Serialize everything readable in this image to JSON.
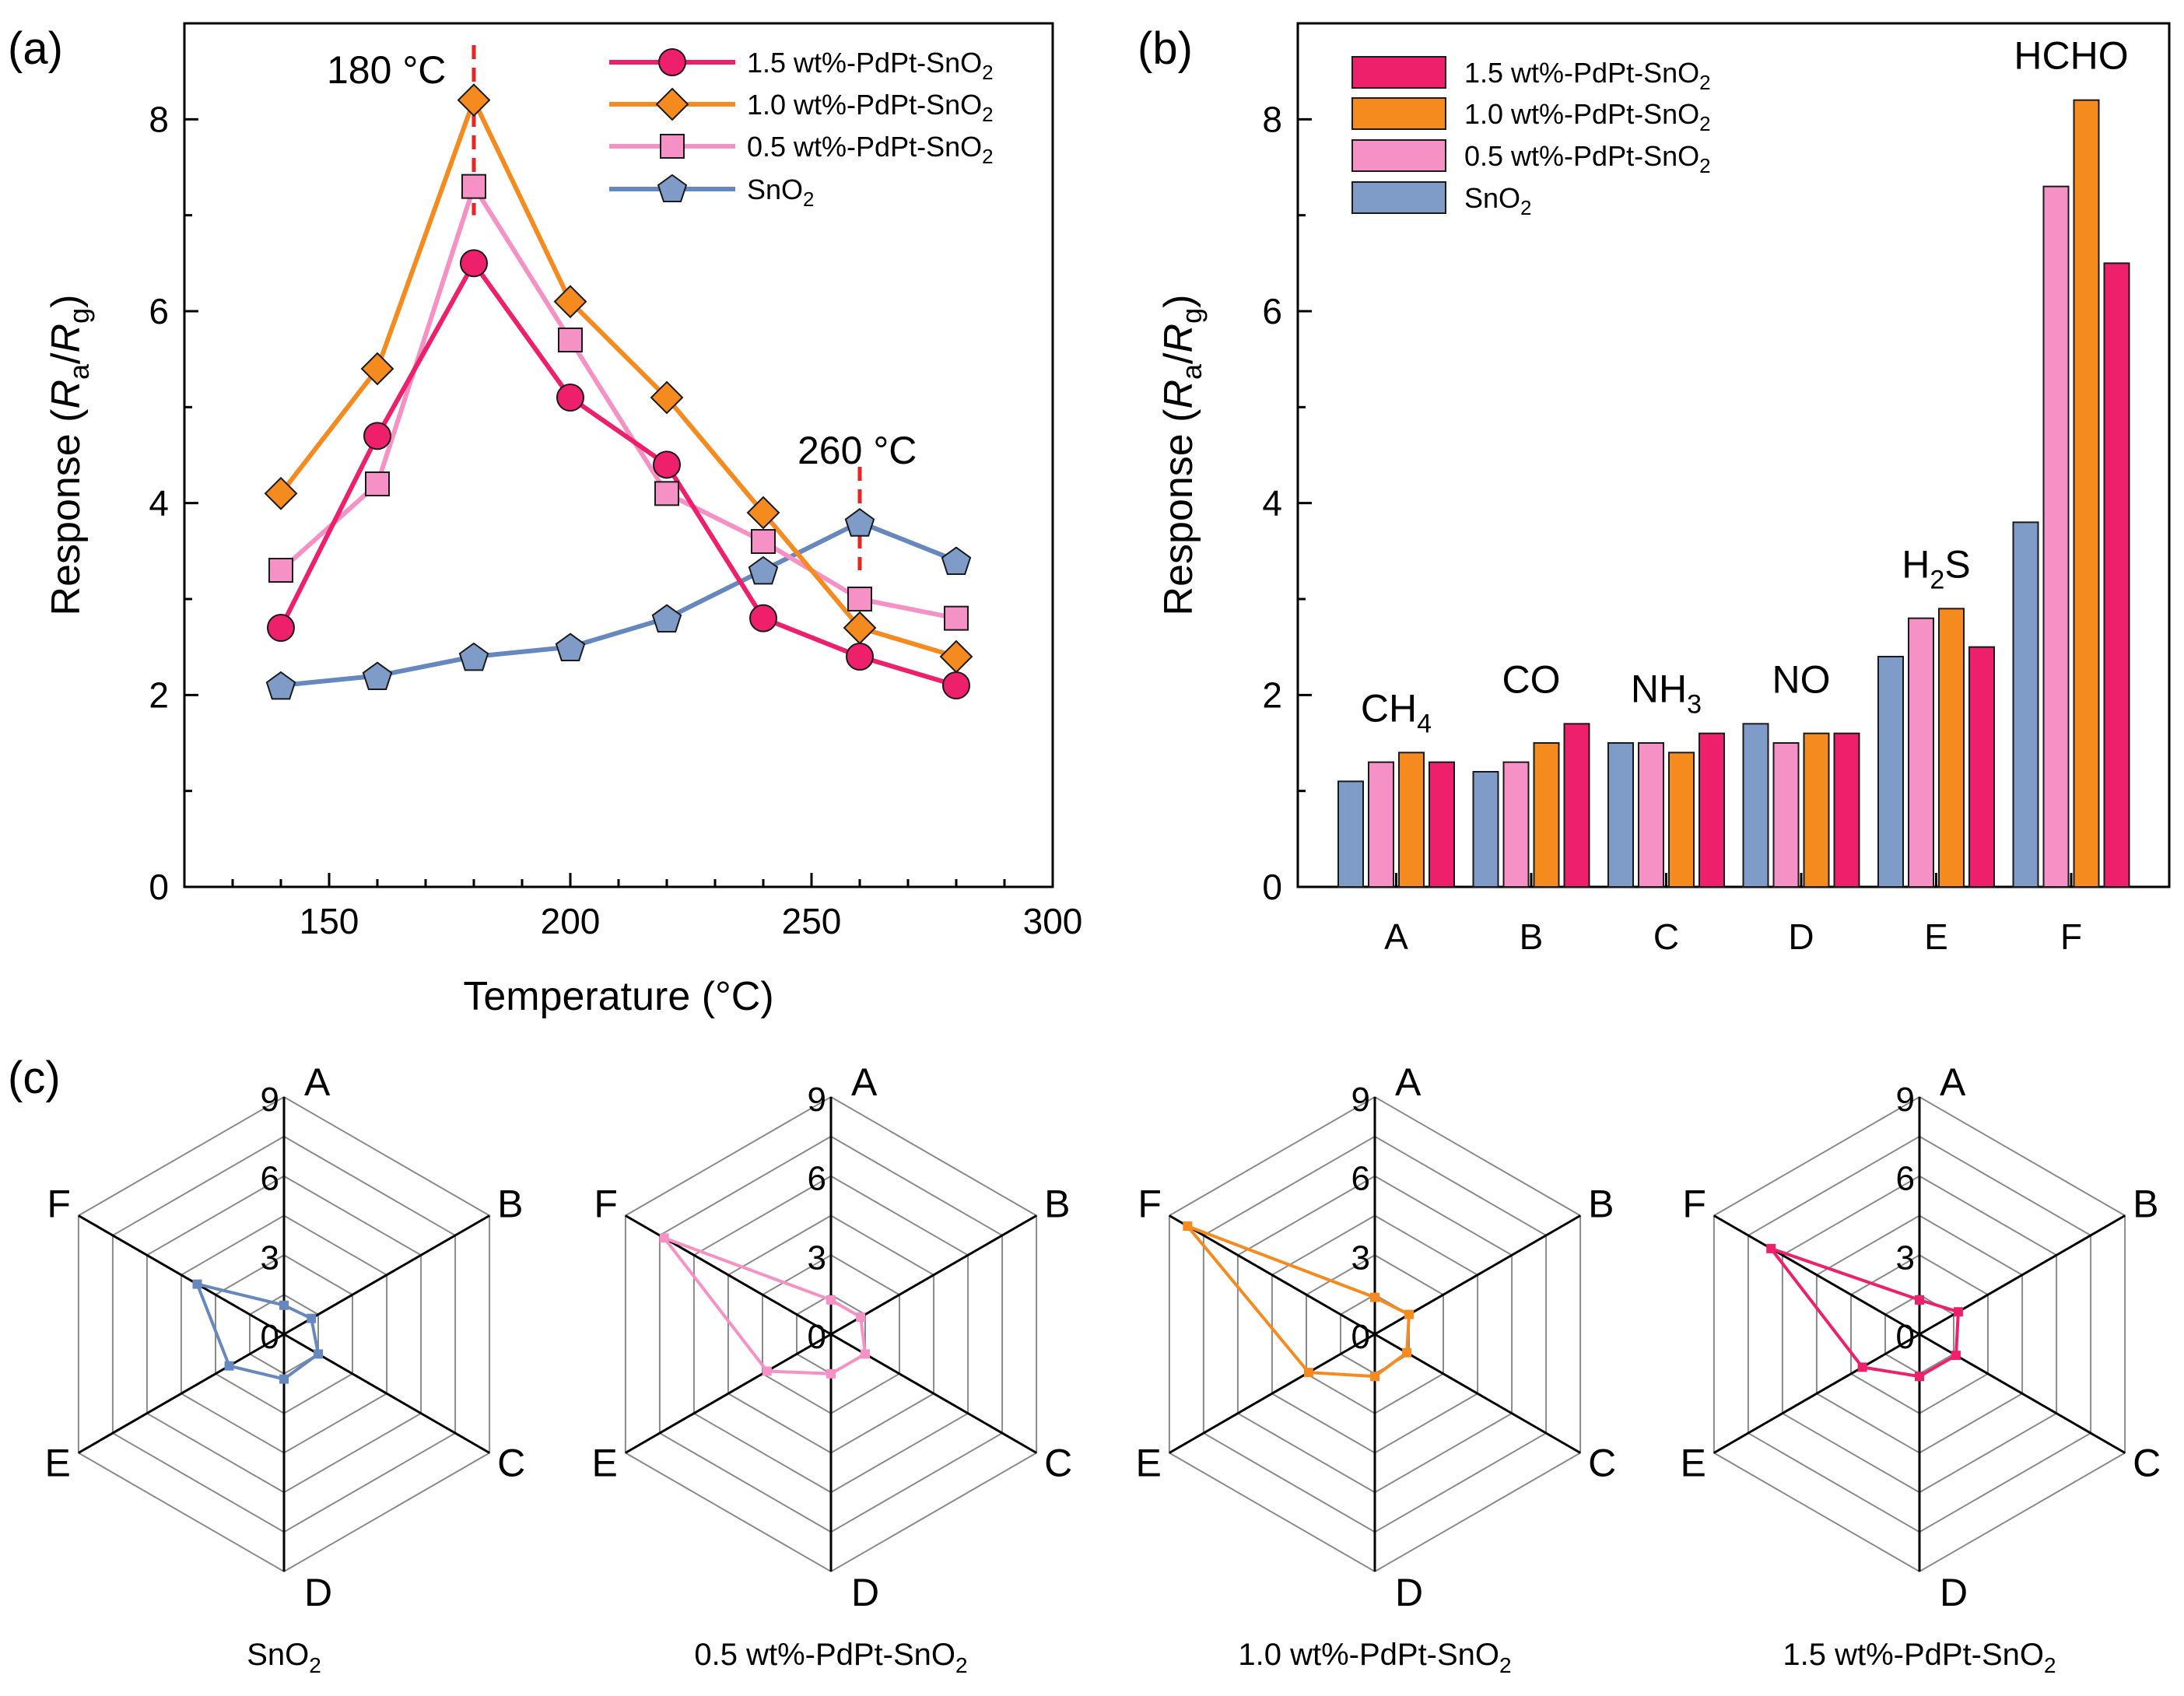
{
  "colors": {
    "s15": "#EE1F6B",
    "s10": "#F58A1F",
    "s05": "#F691C5",
    "sno2": "#7F9CC9",
    "sno2_line": "#6788BE",
    "marker_edge": "#1a1a1a",
    "vline": "#E8251F"
  },
  "panel_a": {
    "label": "(a)",
    "xlabel": "Temperature (°C)",
    "ylabel_prefix": "Response (",
    "ylabel_ra": "R",
    "ylabel_ra_sub": "a",
    "ylabel_slash": "/",
    "ylabel_rg": "R",
    "ylabel_rg_sub": "g",
    "ylabel_suffix": ")",
    "annotations": [
      "180 °C",
      "260 °C"
    ]
  },
  "panel_b": {
    "label": "(b)",
    "ylabel_prefix": "Response (",
    "ylabel_ra": "R",
    "ylabel_ra_sub": "a",
    "ylabel_slash": "/",
    "ylabel_rg": "R",
    "ylabel_rg_sub": "g",
    "ylabel_suffix": ")",
    "gas_labels": [
      {
        "main": "CH",
        "sub": "4",
        "post": ""
      },
      {
        "main": "CO",
        "sub": "",
        "post": ""
      },
      {
        "main": "NH",
        "sub": "3",
        "post": ""
      },
      {
        "main": "NO",
        "sub": "",
        "post": ""
      },
      {
        "main": "H",
        "sub": "2",
        "post": "S"
      },
      {
        "main": "HCHO",
        "sub": "",
        "post": ""
      }
    ]
  },
  "panel_c": {
    "label": "(c)"
  },
  "legend": [
    {
      "pre": "1.5 wt%-PdPt-SnO",
      "sub": "2"
    },
    {
      "pre": "1.0 wt%-PdPt-SnO",
      "sub": "2"
    },
    {
      "pre": "0.5 wt%-PdPt-SnO",
      "sub": "2"
    },
    {
      "pre": "SnO",
      "sub": "2"
    }
  ],
  "chart_data": [
    {
      "type": "line",
      "title": "",
      "xlabel": "Temperature (°C)",
      "ylabel": "Response (Ra/Rg)",
      "xlim": [
        120,
        300
      ],
      "ylim": [
        0,
        9
      ],
      "xticks": [
        150,
        200,
        250,
        300
      ],
      "yticks": [
        0,
        2,
        4,
        6,
        8
      ],
      "x": [
        140,
        160,
        180,
        200,
        220,
        240,
        260,
        280
      ],
      "series": [
        {
          "name": "1.5 wt%-PdPt-SnO2",
          "marker": "circle",
          "values": [
            2.7,
            4.7,
            6.5,
            5.1,
            4.4,
            2.8,
            2.4,
            2.1
          ]
        },
        {
          "name": "1.0 wt%-PdPt-SnO2",
          "marker": "diamond",
          "values": [
            4.1,
            5.4,
            8.2,
            6.1,
            5.1,
            3.9,
            2.7,
            2.4
          ]
        },
        {
          "name": "0.5 wt%-PdPt-SnO2",
          "marker": "square",
          "values": [
            3.3,
            4.2,
            7.3,
            5.7,
            4.1,
            3.6,
            3.0,
            2.8
          ]
        },
        {
          "name": "SnO2",
          "marker": "pentagon",
          "values": [
            2.1,
            2.2,
            2.4,
            2.5,
            2.8,
            3.3,
            3.8,
            3.4
          ]
        }
      ],
      "vlines": [
        180,
        260
      ],
      "legend_position": "top-right"
    },
    {
      "type": "bar",
      "title": "",
      "xlabel": "",
      "ylabel": "Response (Ra/Rg)",
      "ylim": [
        0,
        9
      ],
      "yticks": [
        0,
        2,
        4,
        6,
        8
      ],
      "categories": [
        "A",
        "B",
        "C",
        "D",
        "E",
        "F"
      ],
      "gases": [
        "CH4",
        "CO",
        "NH3",
        "NO",
        "H2S",
        "HCHO"
      ],
      "series": [
        {
          "name": "SnO2",
          "values": [
            1.1,
            1.2,
            1.5,
            1.7,
            2.4,
            3.8
          ]
        },
        {
          "name": "0.5 wt%-PdPt-SnO2",
          "values": [
            1.3,
            1.3,
            1.5,
            1.5,
            2.8,
            7.3
          ]
        },
        {
          "name": "1.0 wt%-PdPt-SnO2",
          "values": [
            1.4,
            1.5,
            1.4,
            1.6,
            2.9,
            8.2
          ]
        },
        {
          "name": "1.5 wt%-PdPt-SnO2",
          "values": [
            1.3,
            1.7,
            1.6,
            1.6,
            2.5,
            6.5
          ]
        }
      ],
      "legend_order": [
        "1.5 wt%-PdPt-SnO2",
        "1.0 wt%-PdPt-SnO2",
        "0.5 wt%-PdPt-SnO2",
        "SnO2"
      ],
      "legend_position": "top-left"
    },
    {
      "type": "radar",
      "axes": [
        "A",
        "B",
        "C",
        "D",
        "E",
        "F"
      ],
      "rlim": [
        0,
        9
      ],
      "rticks": [
        0,
        3,
        6,
        9
      ],
      "charts": [
        {
          "caption_pre": "SnO",
          "caption_sub": "2",
          "caption_post": "",
          "color_key": "sno2_line",
          "values": [
            1.1,
            1.2,
            1.5,
            1.7,
            2.4,
            3.8
          ]
        },
        {
          "caption_pre": "0.5 wt%-PdPt-SnO",
          "caption_sub": "2",
          "caption_post": "",
          "color_key": "s05",
          "values": [
            1.3,
            1.3,
            1.5,
            1.5,
            2.8,
            7.3
          ]
        },
        {
          "caption_pre": "1.0 wt%-PdPt-SnO",
          "caption_sub": "2",
          "caption_post": "",
          "color_key": "s10",
          "values": [
            1.4,
            1.5,
            1.4,
            1.6,
            2.9,
            8.2
          ]
        },
        {
          "caption_pre": "1.5 wt%-PdPt-SnO",
          "caption_sub": "2",
          "caption_post": "",
          "color_key": "s15",
          "values": [
            1.3,
            1.7,
            1.6,
            1.6,
            2.5,
            6.5
          ]
        }
      ]
    }
  ]
}
